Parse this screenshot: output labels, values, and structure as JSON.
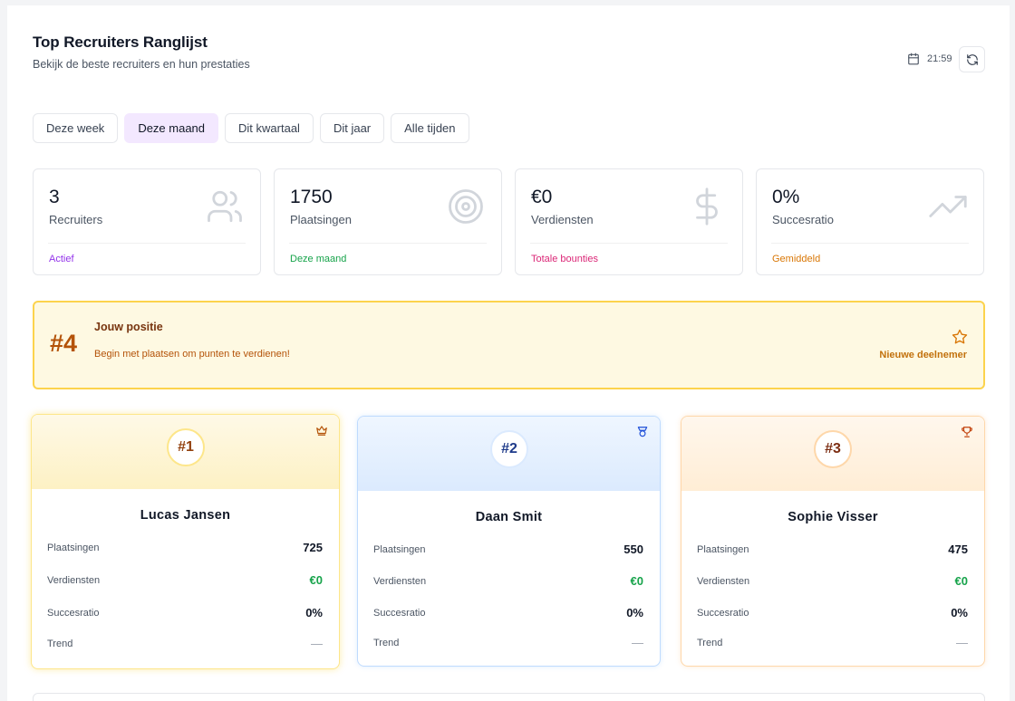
{
  "header": {
    "title": "Top Recruiters Ranglijst",
    "subtitle": "Bekijk de beste recruiters en hun prestaties",
    "time": "21:59",
    "calendar_icon": "calendar-icon",
    "refresh_icon": "refresh-icon"
  },
  "tabs": [
    {
      "label": "Deze week",
      "active": false
    },
    {
      "label": "Deze maand",
      "active": true
    },
    {
      "label": "Dit kwartaal",
      "active": false
    },
    {
      "label": "Dit jaar",
      "active": false
    },
    {
      "label": "Alle tijden",
      "active": false
    }
  ],
  "stats": [
    {
      "value": "3",
      "label": "Recruiters",
      "footer": "Actief",
      "footer_color": "#9333ea",
      "icon": "users-icon"
    },
    {
      "value": "1750",
      "label": "Plaatsingen",
      "footer": "Deze maand",
      "footer_color": "#16a34a",
      "icon": "target-icon"
    },
    {
      "value": "€0",
      "label": "Verdiensten",
      "footer": "Totale bounties",
      "footer_color": "#db2777",
      "icon": "dollar-icon"
    },
    {
      "value": "0%",
      "label": "Succesratio",
      "footer": "Gemiddeld",
      "footer_color": "#d97706",
      "icon": "trending-up-icon"
    }
  ],
  "position": {
    "rank": "#4",
    "title": "Jouw positie",
    "description": "Begin met plaatsen om punten te verdienen!",
    "badge": "Nieuwe deelnemer",
    "icon": "star-icon"
  },
  "podium": [
    {
      "rank": "#1",
      "name": "Lucas Jansen",
      "icon": "crown-icon",
      "rows": [
        {
          "label": "Plaatsingen",
          "value": "725"
        },
        {
          "label": "Verdiensten",
          "value": "€0"
        },
        {
          "label": "Succesratio",
          "value": "0%"
        },
        {
          "label": "Trend",
          "value": "—"
        }
      ]
    },
    {
      "rank": "#2",
      "name": "Daan Smit",
      "icon": "medal-icon",
      "rows": [
        {
          "label": "Plaatsingen",
          "value": "550"
        },
        {
          "label": "Verdiensten",
          "value": "€0"
        },
        {
          "label": "Succesratio",
          "value": "0%"
        },
        {
          "label": "Trend",
          "value": "—"
        }
      ]
    },
    {
      "rank": "#3",
      "name": "Sophie Visser",
      "icon": "trophy-icon",
      "rows": [
        {
          "label": "Plaatsingen",
          "value": "475"
        },
        {
          "label": "Verdiensten",
          "value": "€0"
        },
        {
          "label": "Succesratio",
          "value": "0%"
        },
        {
          "label": "Trend",
          "value": "—"
        }
      ]
    }
  ],
  "colors": {
    "gold": "#fde68a",
    "silver_blue": "#bfdbfe",
    "bronze": "#fed7aa",
    "earnings_green": "#16a34a",
    "position_accent": "#b45309"
  }
}
